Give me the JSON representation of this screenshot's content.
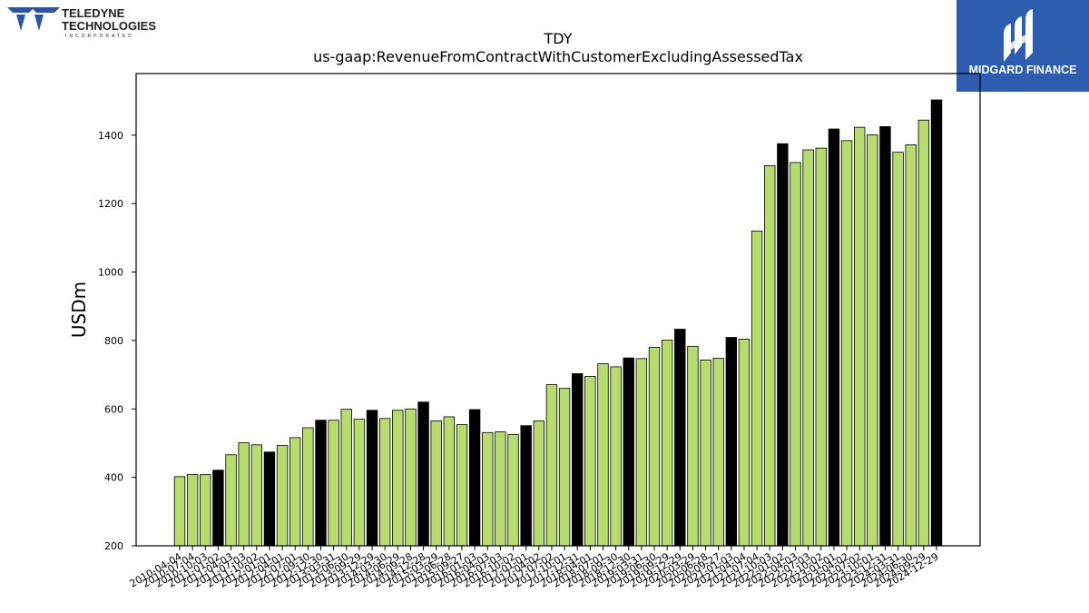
{
  "header": {
    "company_logo_line1": "TELEDYNE",
    "company_logo_line2": "TECHNOLOGIES",
    "company_logo_line3": "INCORPORATED",
    "brand_name": "MIDGARD FINANCE"
  },
  "colors": {
    "bar_green": "#b5dc6c",
    "bar_black": "#000000",
    "brand_blue": "#2d5db0",
    "teledyne_blue": "#2a56a5"
  },
  "chart_data": {
    "type": "bar",
    "title": "TDY",
    "subtitle": "us-gaap:RevenueFromContractWithCustomerExcludingAssessedTax",
    "xlabel": "",
    "ylabel": "USDm",
    "ylim": [
      200,
      1580
    ],
    "yticks": [
      200,
      400,
      600,
      800,
      1000,
      1200,
      1400
    ],
    "grid": false,
    "categories": [
      "2010-04-04",
      "2010-07-04",
      "2010-10-03",
      "2011-01-02",
      "2011-04-03",
      "2011-07-03",
      "2011-10-02",
      "2012-01-01",
      "2012-04-01",
      "2012-07-01",
      "2012-09-30",
      "2012-12-30",
      "2013-03-31",
      "2013-06-30",
      "2013-09-29",
      "2013-12-29",
      "2014-03-30",
      "2014-06-29",
      "2014-09-28",
      "2014-12-28",
      "2015-03-29",
      "2015-06-28",
      "2015-09-27",
      "2016-01-03",
      "2016-04-03",
      "2016-07-03",
      "2016-10-02",
      "2017-01-01",
      "2017-04-02",
      "2017-07-02",
      "2017-10-01",
      "2017-12-31",
      "2018-04-01",
      "2018-07-01",
      "2018-09-30",
      "2018-12-30",
      "2019-03-31",
      "2019-06-30",
      "2019-09-29",
      "2019-12-29",
      "2020-03-29",
      "2020-06-28",
      "2020-09-27",
      "2021-01-03",
      "2021-04-04",
      "2021-07-04",
      "2021-10-03",
      "2022-01-02",
      "2022-04-03",
      "2022-07-03",
      "2022-10-02",
      "2023-01-01",
      "2023-04-02",
      "2023-07-02",
      "2023-10-01",
      "2023-12-31",
      "2024-03-31",
      "2024-06-30",
      "2024-09-29",
      "2024-12-29"
    ],
    "values": [
      402,
      408,
      408,
      421,
      466,
      501,
      495,
      474,
      493,
      516,
      545,
      567,
      567,
      599,
      570,
      596,
      572,
      596,
      600,
      620,
      565,
      577,
      554,
      598,
      531,
      533,
      525,
      551,
      565,
      671,
      660,
      703,
      695,
      732,
      723,
      749,
      747,
      780,
      801,
      833,
      783,
      743,
      748,
      809,
      804,
      1120,
      1311,
      1375,
      1320,
      1357,
      1362,
      1418,
      1384,
      1423,
      1401,
      1425,
      1350,
      1372,
      1444,
      1503
    ],
    "highlight": [
      false,
      false,
      false,
      true,
      false,
      false,
      false,
      true,
      false,
      false,
      false,
      true,
      false,
      false,
      false,
      true,
      false,
      false,
      false,
      true,
      false,
      false,
      false,
      true,
      false,
      false,
      false,
      true,
      false,
      false,
      false,
      true,
      false,
      false,
      false,
      true,
      false,
      false,
      false,
      true,
      false,
      false,
      false,
      true,
      false,
      false,
      false,
      true,
      false,
      false,
      false,
      true,
      false,
      false,
      false,
      true,
      false,
      false,
      false,
      true
    ]
  }
}
